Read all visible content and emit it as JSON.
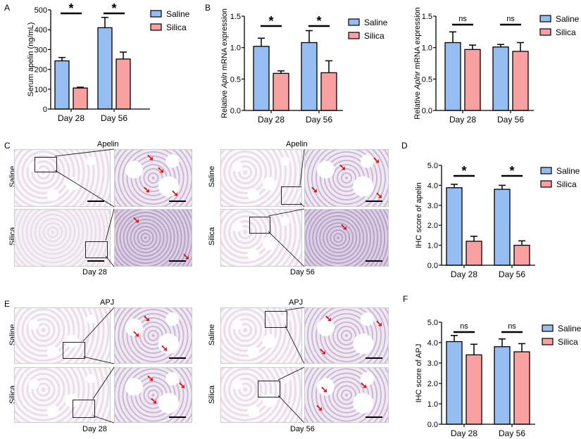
{
  "panel_labels": {
    "a": "A",
    "b": "B",
    "c": "C",
    "d": "D",
    "e": "E",
    "f": "F"
  },
  "colors": {
    "saline": "#95bdf2",
    "silica": "#f9a0a0"
  },
  "histology": {
    "apelin_title": "Apelin",
    "apj_title": "APJ",
    "row_saline": "Saline",
    "row_silica": "Silica",
    "day28": "Day 28",
    "day56": "Day 56",
    "arrow_icon": "red-arrow",
    "arrow_glyph": "➘"
  },
  "chart_data": [
    {
      "type": "bar",
      "panel": "A",
      "ylabel": "Serum apelin (ng/mL)",
      "ylim": [
        0,
        500
      ],
      "yticks": [
        "0",
        "100",
        "200",
        "300",
        "400",
        "500"
      ],
      "categories": [
        "Day 28",
        "Day 56"
      ],
      "series": [
        {
          "name": "Saline",
          "values": [
            243,
            410
          ],
          "errors": [
            17,
            52
          ]
        },
        {
          "name": "Silica",
          "values": [
            106,
            252
          ],
          "errors": [
            4,
            35
          ]
        }
      ],
      "significance": [
        "*",
        "*"
      ],
      "legend": "top-right"
    },
    {
      "type": "bar",
      "panel": "B",
      "ylabel_parts": [
        "Relative ",
        "Apln",
        " mRNA expression"
      ],
      "ylim": [
        0,
        1.5
      ],
      "yticks": [
        "0.0",
        "0.5",
        "1.0",
        "1.5"
      ],
      "categories": [
        "Day 28",
        "Day 56"
      ],
      "series": [
        {
          "name": "Saline",
          "values": [
            1.02,
            1.08
          ],
          "errors": [
            0.13,
            0.19
          ]
        },
        {
          "name": "Silica",
          "values": [
            0.59,
            0.6
          ],
          "errors": [
            0.04,
            0.19
          ]
        }
      ],
      "significance": [
        "*",
        "*"
      ],
      "legend": "top-right"
    },
    {
      "type": "bar",
      "panel": "B2",
      "ylabel_parts": [
        "Relative ",
        "Aplnr",
        " mRNA expression"
      ],
      "ylim": [
        0,
        1.5
      ],
      "yticks": [
        "0.0",
        "0.5",
        "1.0",
        "1.5"
      ],
      "categories": [
        "Day 28",
        "Day 56"
      ],
      "series": [
        {
          "name": "Saline",
          "values": [
            1.08,
            1.01
          ],
          "errors": [
            0.17,
            0.04
          ]
        },
        {
          "name": "Silica",
          "values": [
            0.97,
            0.94
          ],
          "errors": [
            0.07,
            0.14
          ]
        }
      ],
      "significance": [
        "ns",
        "ns"
      ],
      "legend": "top-right"
    },
    {
      "type": "bar",
      "panel": "D",
      "ylabel": "IHC score of apelin",
      "ylim": [
        0,
        5
      ],
      "yticks": [
        "0.0",
        "1.0",
        "2.0",
        "3.0",
        "4.0",
        "5.0"
      ],
      "categories": [
        "Day 28",
        "Day 56"
      ],
      "series": [
        {
          "name": "Saline",
          "values": [
            3.88,
            3.8
          ],
          "errors": [
            0.17,
            0.2
          ]
        },
        {
          "name": "Silica",
          "values": [
            1.2,
            1.0
          ],
          "errors": [
            0.25,
            0.22
          ]
        }
      ],
      "significance": [
        "*",
        "*"
      ],
      "legend": "top-right"
    },
    {
      "type": "bar",
      "panel": "F",
      "ylabel": "IHC score of APJ",
      "ylim": [
        0,
        5
      ],
      "yticks": [
        "0.0",
        "1.0",
        "2.0",
        "3.0",
        "4.0",
        "5.0"
      ],
      "categories": [
        "Day 28",
        "Day 56"
      ],
      "series": [
        {
          "name": "Saline",
          "values": [
            4.05,
            3.8
          ],
          "errors": [
            0.3,
            0.38
          ]
        },
        {
          "name": "Silica",
          "values": [
            3.4,
            3.55
          ],
          "errors": [
            0.52,
            0.4
          ]
        }
      ],
      "significance": [
        "ns",
        "ns"
      ],
      "legend": "top-right"
    }
  ]
}
